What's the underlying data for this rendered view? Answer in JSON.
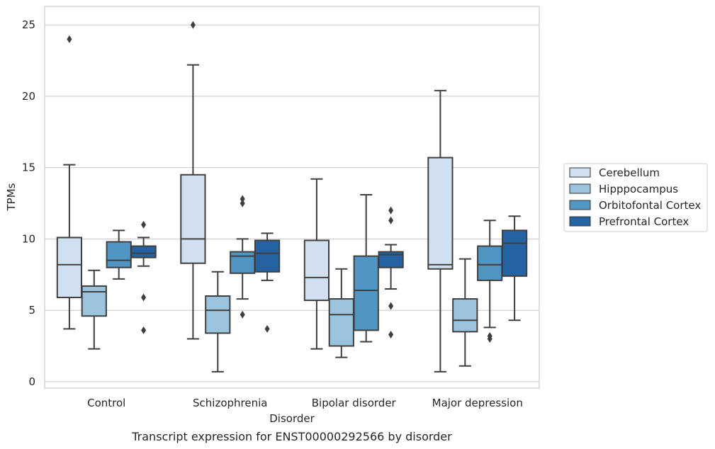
{
  "chart_data": {
    "type": "box",
    "xlabel": "Disorder",
    "ylabel": "TPMs",
    "caption": "Transcript expression for ENST00000292566 by disorder",
    "ylim": [
      -0.45,
      26.3
    ],
    "yticks": [
      0,
      5,
      10,
      15,
      20,
      25
    ],
    "grid": true,
    "legend_position": "right",
    "categories": [
      "Control",
      "Schizophrenia",
      "Bipolar disorder",
      "Major depression"
    ],
    "series": [
      {
        "name": "Cerebellum",
        "color": "#d1e0f0",
        "boxes": [
          {
            "whislo": 3.7,
            "q1": 5.9,
            "med": 8.2,
            "q3": 10.1,
            "whishi": 15.2,
            "fliers": [
              24.0
            ]
          },
          {
            "whislo": 3.0,
            "q1": 8.3,
            "med": 10.0,
            "q3": 14.5,
            "whishi": 22.2,
            "fliers": [
              25.0
            ]
          },
          {
            "whislo": 2.3,
            "q1": 5.7,
            "med": 7.3,
            "q3": 9.9,
            "whishi": 14.2,
            "fliers": []
          },
          {
            "whislo": 0.7,
            "q1": 7.9,
            "med": 8.2,
            "q3": 15.7,
            "whishi": 20.4,
            "fliers": []
          }
        ]
      },
      {
        "name": "Hipppocampus",
        "color": "#9ac3de",
        "boxes": [
          {
            "whislo": 2.3,
            "q1": 4.6,
            "med": 6.3,
            "q3": 6.7,
            "whishi": 7.8,
            "fliers": []
          },
          {
            "whislo": 0.7,
            "q1": 3.4,
            "med": 5.0,
            "q3": 6.0,
            "whishi": 7.7,
            "fliers": []
          },
          {
            "whislo": 1.7,
            "q1": 2.5,
            "med": 4.7,
            "q3": 5.8,
            "whishi": 7.9,
            "fliers": []
          },
          {
            "whislo": 1.1,
            "q1": 3.5,
            "med": 4.3,
            "q3": 5.8,
            "whishi": 8.6,
            "fliers": []
          }
        ]
      },
      {
        "name": "Orbitofontal Cortex",
        "color": "#5195c3",
        "boxes": [
          {
            "whislo": 7.2,
            "q1": 8.0,
            "med": 8.5,
            "q3": 9.8,
            "whishi": 10.6,
            "fliers": []
          },
          {
            "whislo": 5.8,
            "q1": 7.6,
            "med": 8.8,
            "q3": 9.1,
            "whishi": 10.0,
            "fliers": [
              4.7,
              12.5,
              12.8
            ]
          },
          {
            "whislo": 2.8,
            "q1": 3.6,
            "med": 6.4,
            "q3": 8.8,
            "whishi": 13.1,
            "fliers": []
          },
          {
            "whislo": 3.8,
            "q1": 7.1,
            "med": 8.2,
            "q3": 9.5,
            "whishi": 11.3,
            "fliers": [
              3.0,
              3.2
            ]
          }
        ]
      },
      {
        "name": "Prefrontal Cortex",
        "color": "#2462a2",
        "boxes": [
          {
            "whislo": 8.1,
            "q1": 8.7,
            "med": 9.0,
            "q3": 9.5,
            "whishi": 10.1,
            "fliers": [
              3.6,
              5.9,
              11.0
            ]
          },
          {
            "whislo": 7.1,
            "q1": 7.7,
            "med": 9.0,
            "q3": 9.9,
            "whishi": 10.4,
            "fliers": [
              3.7
            ]
          },
          {
            "whislo": 6.5,
            "q1": 8.0,
            "med": 8.9,
            "q3": 9.1,
            "whishi": 9.6,
            "fliers": [
              3.3,
              5.3,
              11.3,
              12.0
            ]
          },
          {
            "whislo": 4.3,
            "q1": 7.4,
            "med": 9.7,
            "q3": 10.6,
            "whishi": 11.6,
            "fliers": []
          }
        ]
      }
    ]
  }
}
